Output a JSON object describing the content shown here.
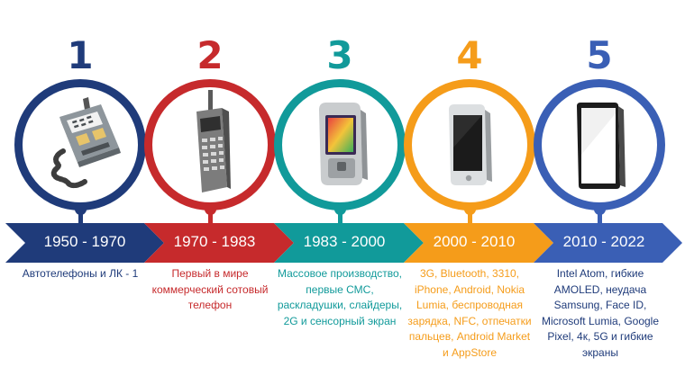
{
  "colors": {
    "era1": "#1f3b7a",
    "era2": "#c62a2c",
    "era3": "#119a9a",
    "era4": "#f59c1a",
    "era5": "#3a5fb5"
  },
  "eras": [
    {
      "number": "1",
      "period": "1950 - 1970",
      "icon": "car-phone-icon",
      "desc": [
        "Автотелефоны и ЛК - 1"
      ]
    },
    {
      "number": "2",
      "period": "1970 - 1983",
      "icon": "brick-phone-icon",
      "desc": [
        "Первый в мире",
        "коммерческий сотовый",
        "телефон"
      ]
    },
    {
      "number": "3",
      "period": "1983 - 2000",
      "icon": "slider-phone-icon",
      "desc": [
        "Массовое производство,",
        "первые СМС,",
        "раскладушки, слайдеры,",
        "2G и сенсорный экран"
      ]
    },
    {
      "number": "4",
      "period": "2000 - 2010",
      "icon": "smartphone-icon",
      "desc": [
        "3G, Bluetooth, 3310,",
        "iPhone, Android, Nokia",
        "Lumia, беспроводная",
        "зарядка, NFC, отпечатки",
        "пальцев, Android Market",
        "и AppStore"
      ]
    },
    {
      "number": "5",
      "period": "2010 - 2022",
      "icon": "modern-smartphone-icon",
      "desc": [
        "Intel Atom, гибкие",
        "AMOLED, неудача",
        "Samsung, Face ID,",
        "Microsoft Lumia, Google",
        "Pixel, 4к, 5G и гибкие",
        "экраны"
      ]
    }
  ]
}
